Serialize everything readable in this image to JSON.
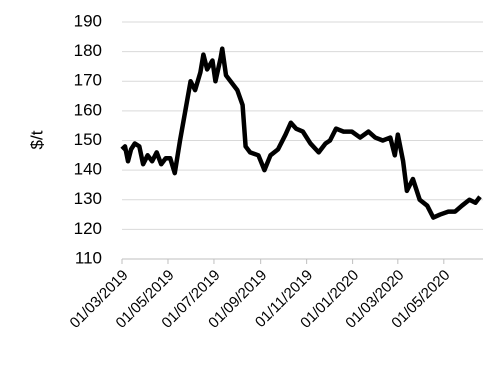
{
  "chart_data": {
    "type": "line",
    "y_label": "$/t",
    "x": [
      "01/03/2019",
      "05/03/2019",
      "09/03/2019",
      "13/03/2019",
      "18/03/2019",
      "24/03/2019",
      "29/03/2019",
      "04/04/2019",
      "10/04/2019",
      "16/04/2019",
      "22/04/2019",
      "28/04/2019",
      "04/05/2019",
      "10/05/2019",
      "17/05/2019",
      "24/05/2019",
      "31/05/2019",
      "06/06/2019",
      "13/06/2019",
      "17/06/2019",
      "22/06/2019",
      "29/06/2019",
      "03/07/2019",
      "10/07/2019",
      "12/07/2019",
      "17/07/2019",
      "23/07/2019",
      "01/08/2019",
      "08/08/2019",
      "12/08/2019",
      "18/08/2019",
      "29/08/2019",
      "06/09/2019",
      "14/09/2019",
      "24/09/2019",
      "04/10/2019",
      "11/10/2019",
      "18/10/2019",
      "27/10/2019",
      "06/11/2019",
      "17/11/2019",
      "26/11/2019",
      "02/12/2019",
      "10/12/2019",
      "20/12/2019",
      "31/12/2019",
      "11/01/2020",
      "22/01/2020",
      "31/01/2020",
      "10/02/2020",
      "20/02/2020",
      "26/02/2020",
      "01/03/2020",
      "08/03/2020",
      "13/03/2020",
      "21/03/2020",
      "30/03/2020",
      "09/04/2020",
      "17/04/2020",
      "26/04/2020",
      "07/05/2020",
      "16/05/2020",
      "25/05/2020",
      "04/06/2020",
      "12/06/2020",
      "18/06/2020"
    ],
    "series": [
      {
        "color": "#000000",
        "values": [
          147,
          148,
          143,
          147,
          149,
          148,
          142,
          145,
          143,
          146,
          142,
          144,
          144,
          139,
          150,
          160,
          170,
          167,
          173,
          179,
          174,
          177,
          170,
          178,
          181,
          172,
          170,
          167,
          162,
          148,
          146,
          145,
          140,
          145,
          147,
          152,
          156,
          154,
          153,
          149,
          146,
          149,
          150,
          154,
          153,
          153,
          151,
          153,
          151,
          150,
          151,
          145,
          152,
          143,
          133,
          137,
          130,
          128,
          124,
          125,
          126,
          126,
          128,
          130,
          129,
          131
        ]
      }
    ],
    "xlim": [
      "01/03/2019",
      "22/06/2020"
    ],
    "xticks": [
      "01/03/2019",
      "01/05/2019",
      "01/07/2019",
      "01/09/2019",
      "01/11/2019",
      "01/01/2020",
      "01/03/2020",
      "01/05/2020"
    ],
    "ylim": [
      110,
      190
    ],
    "yticks": [
      110,
      120,
      130,
      140,
      150,
      160,
      170,
      180,
      190
    ],
    "grid": true
  }
}
